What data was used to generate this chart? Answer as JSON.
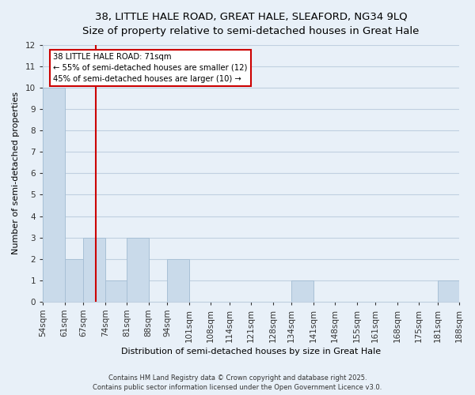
{
  "title_line1": "38, LITTLE HALE ROAD, GREAT HALE, SLEAFORD, NG34 9LQ",
  "title_line2": "Size of property relative to semi-detached houses in Great Hale",
  "xlabel": "Distribution of semi-detached houses by size in Great Hale",
  "ylabel": "Number of semi-detached properties",
  "bin_edges": [
    54,
    61,
    67,
    74,
    81,
    88,
    94,
    101,
    108,
    114,
    121,
    128,
    134,
    141,
    148,
    155,
    161,
    168,
    175,
    181,
    188
  ],
  "bin_labels": [
    "54sqm",
    "61sqm",
    "67sqm",
    "74sqm",
    "81sqm",
    "88sqm",
    "94sqm",
    "101sqm",
    "108sqm",
    "114sqm",
    "121sqm",
    "128sqm",
    "134sqm",
    "141sqm",
    "148sqm",
    "155sqm",
    "161sqm",
    "168sqm",
    "175sqm",
    "181sqm",
    "188sqm"
  ],
  "counts": [
    10,
    2,
    3,
    1,
    3,
    0,
    2,
    0,
    0,
    0,
    0,
    0,
    1,
    0,
    0,
    0,
    0,
    0,
    0,
    1
  ],
  "bar_color": "#c9daea",
  "bar_edge_color": "#a8c0d6",
  "vline_x": 71,
  "vline_color": "#cc0000",
  "ylim": [
    0,
    12
  ],
  "annotation_line1": "38 LITTLE HALE ROAD: 71sqm",
  "annotation_line2": "← 55% of semi-detached houses are smaller (12)",
  "annotation_line3": "45% of semi-detached houses are larger (10) →",
  "annotation_box_color": "#ffffff",
  "annotation_box_edge": "#cc0000",
  "footnote1": "Contains HM Land Registry data © Crown copyright and database right 2025.",
  "footnote2": "Contains public sector information licensed under the Open Government Licence v3.0.",
  "background_color": "#e8f0f8",
  "grid_color": "#c0d0e0",
  "title_fontsize": 9.5,
  "subtitle_fontsize": 8.5,
  "tick_fontsize": 7.5,
  "label_fontsize": 8.0,
  "footnote_fontsize": 6.0
}
